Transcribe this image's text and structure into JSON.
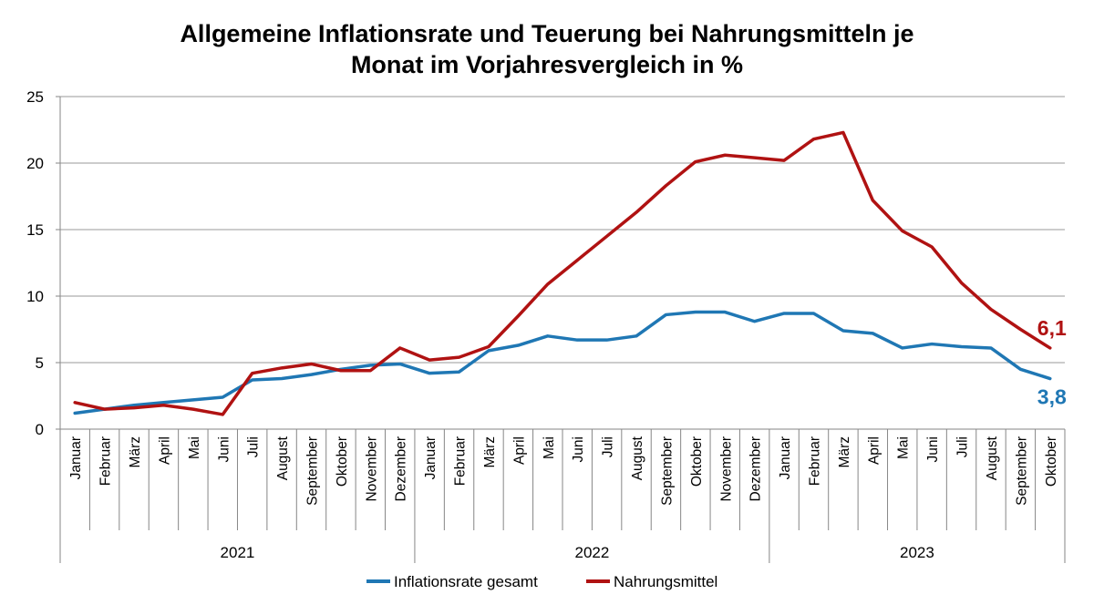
{
  "chart_data": {
    "type": "line",
    "title_lines": [
      "Allgemeine Inflationsrate und Teuerung bei Nahrungsmitteln je",
      "Monat im Vorjahresvergleich in %"
    ],
    "ylim": [
      0,
      25
    ],
    "yticks": [
      "0",
      "5",
      "10",
      "15",
      "20",
      "25"
    ],
    "grid": true,
    "legend_position": "bottom",
    "groups": [
      {
        "label": "2021",
        "count": 12
      },
      {
        "label": "2022",
        "count": 12
      },
      {
        "label": "2023",
        "count": 10
      }
    ],
    "categories": [
      "Januar",
      "Februar",
      "März",
      "April",
      "Mai",
      "Juni",
      "Juli",
      "August",
      "September",
      "Oktober",
      "November",
      "Dezember",
      "Januar",
      "Februar",
      "März",
      "April",
      "Mai",
      "Juni",
      "Juli",
      "August",
      "September",
      "Oktober",
      "November",
      "Dezember",
      "Januar",
      "Februar",
      "März",
      "April",
      "Mai",
      "Juni",
      "Juli",
      "August",
      "September",
      "Oktober"
    ],
    "series": [
      {
        "name": "Inflationsrate gesamt",
        "color": "#1f77b4",
        "end_label": "3,8",
        "values": [
          1.2,
          1.5,
          1.8,
          2.0,
          2.2,
          2.4,
          3.7,
          3.8,
          4.1,
          4.5,
          4.8,
          4.9,
          4.2,
          4.3,
          5.9,
          6.3,
          7.0,
          6.7,
          6.7,
          7.0,
          8.6,
          8.8,
          8.8,
          8.1,
          8.7,
          8.7,
          7.4,
          7.2,
          6.1,
          6.4,
          6.2,
          6.1,
          4.5,
          3.8
        ]
      },
      {
        "name": "Nahrungsmittel",
        "color": "#b01212",
        "end_label": "6,1",
        "values": [
          2.0,
          1.5,
          1.6,
          1.8,
          1.5,
          1.1,
          4.2,
          4.6,
          4.9,
          4.4,
          4.4,
          6.1,
          5.2,
          5.4,
          6.2,
          8.5,
          10.9,
          12.7,
          14.5,
          16.3,
          18.3,
          20.1,
          20.6,
          20.4,
          20.2,
          21.8,
          22.3,
          17.2,
          14.9,
          13.7,
          11.0,
          9.0,
          7.5,
          6.1
        ]
      }
    ]
  }
}
